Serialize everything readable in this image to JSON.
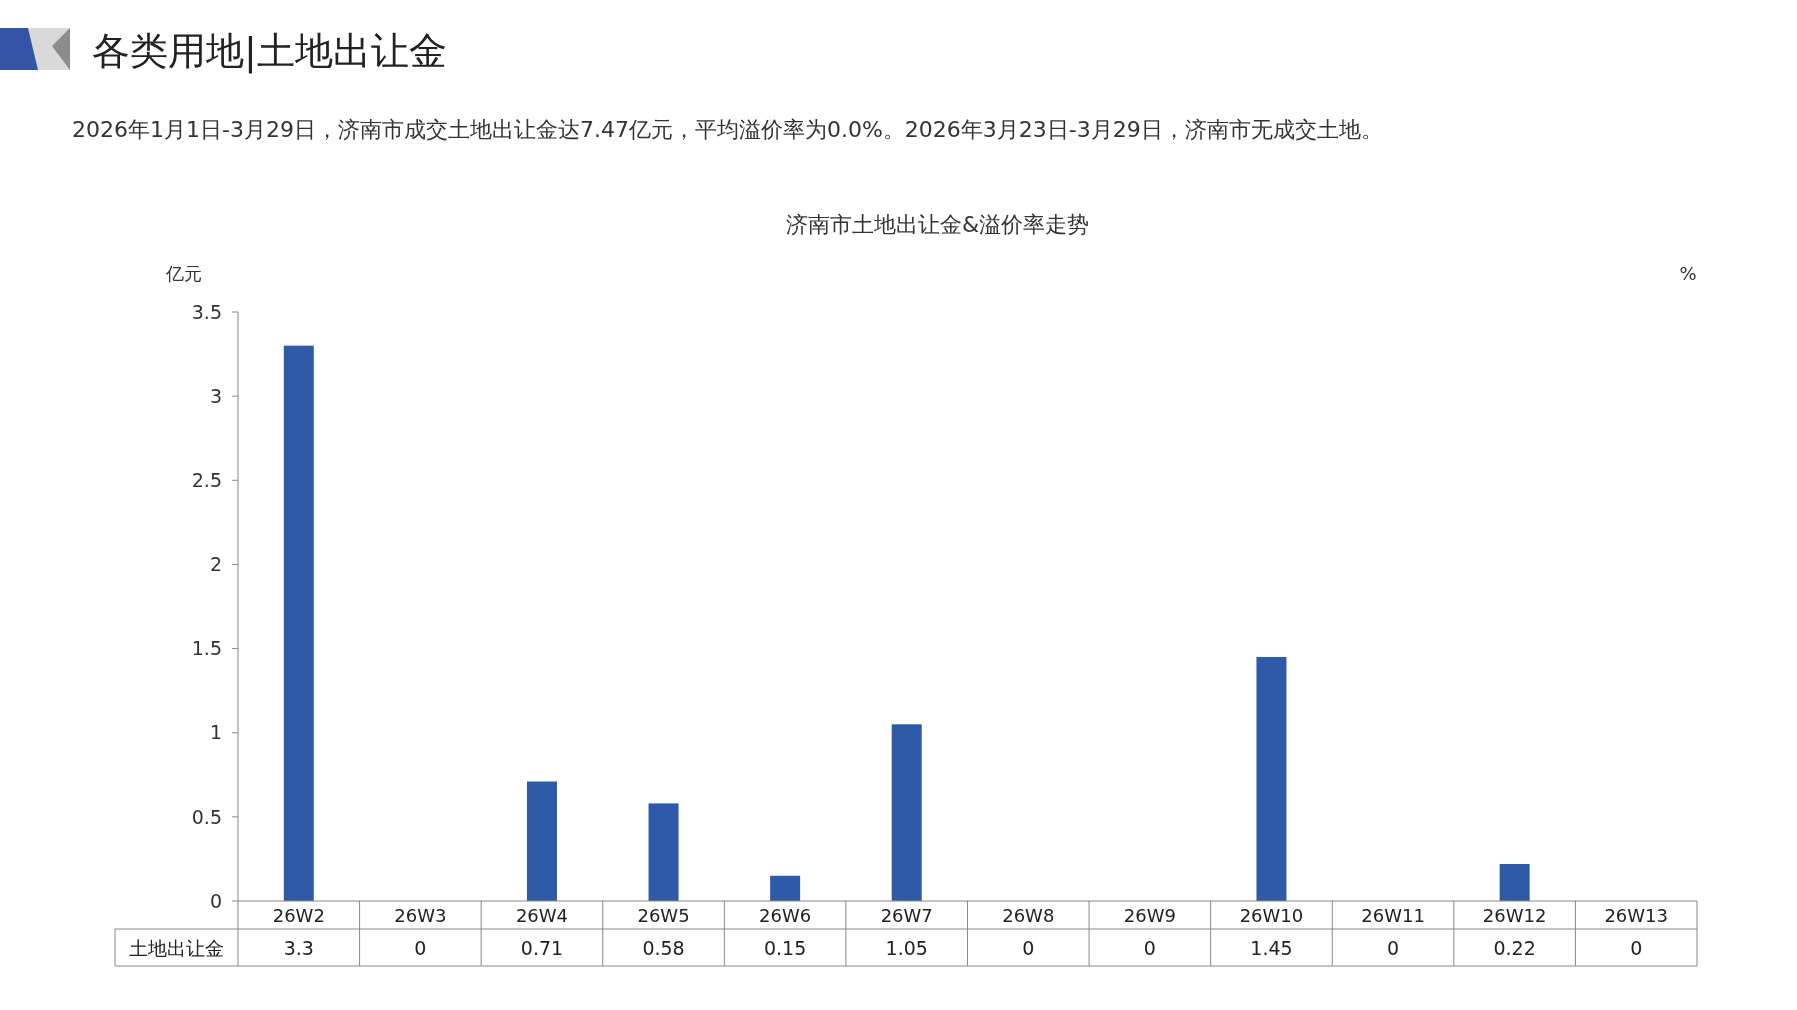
{
  "chart_data": {
    "type": "bar",
    "title": "济南市土地出让金&溢价率走势",
    "annotations": [
      "各类用地|土地出让金",
      "2026年1月1日-3月29日，济南市成交土地出让金达7.47亿元，平均溢价率为0.0%。2026年3月23日-3月29日，济南市无成交土地。"
    ],
    "ylabel": "亿元",
    "y2label": "%",
    "categories": [
      "26W2",
      "26W3",
      "26W4",
      "26W5",
      "26W6",
      "26W7",
      "26W8",
      "26W9",
      "26W10",
      "26W11",
      "26W12",
      "26W13"
    ],
    "series": [
      {
        "name": "土地出让金",
        "color": "#2e5aa8",
        "values": [
          3.3,
          0,
          0.71,
          0.58,
          0.15,
          1.05,
          0,
          0,
          1.45,
          0,
          0.22,
          0
        ]
      }
    ],
    "ylim": [
      0,
      3.5
    ],
    "yticks": [
      0,
      0.5,
      1,
      1.5,
      2,
      2.5,
      3,
      3.5
    ],
    "data_labels": true,
    "grid": false,
    "legend": false
  }
}
